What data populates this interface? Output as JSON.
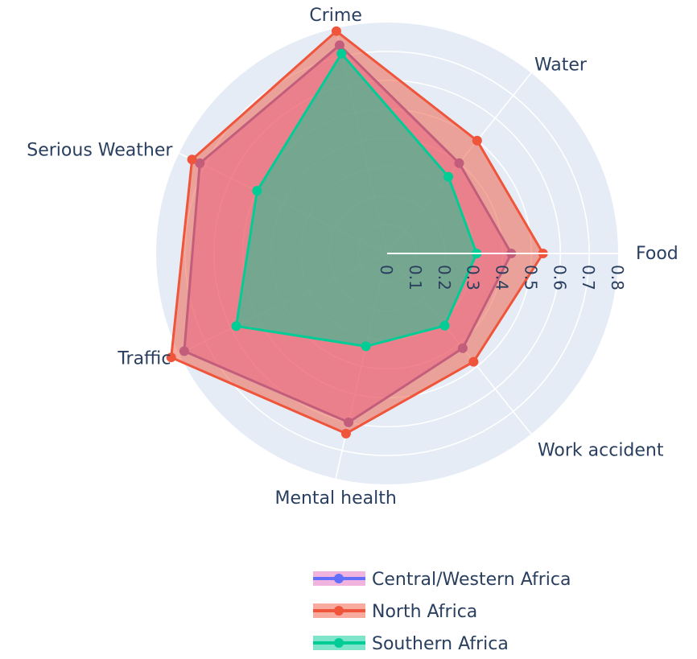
{
  "chart_data": {
    "type": "radar",
    "axes": [
      "Food",
      "Water",
      "Crime",
      "Serious Weather",
      "Traffic",
      "Mental health",
      "Work accident"
    ],
    "radial_ticks": [
      "0",
      "0.1",
      "0.2",
      "0.3",
      "0.4",
      "0.5",
      "0.6",
      "0.7",
      "0.8"
    ],
    "rlim": [
      0,
      0.8
    ],
    "legend_placement": "bottom-right",
    "series": [
      {
        "name": "Central/Western Africa",
        "color": "#636efa",
        "fill": "#e377c2",
        "fill_opacity": 0.55,
        "line": "#9467bd",
        "values": [
          0.43,
          0.4,
          0.74,
          0.72,
          0.78,
          0.6,
          0.42
        ]
      },
      {
        "name": "North Africa",
        "color": "#EF553B",
        "fill": "#EF553B",
        "fill_opacity": 0.5,
        "line": "#EF553B",
        "values": [
          0.54,
          0.5,
          0.79,
          0.75,
          0.83,
          0.64,
          0.48
        ]
      },
      {
        "name": "Southern Africa",
        "color": "#00cc96",
        "fill": "#00cc96",
        "fill_opacity": 0.5,
        "line": "#00cc96",
        "values": [
          0.31,
          0.34,
          0.71,
          0.5,
          0.58,
          0.33,
          0.32
        ]
      }
    ]
  }
}
